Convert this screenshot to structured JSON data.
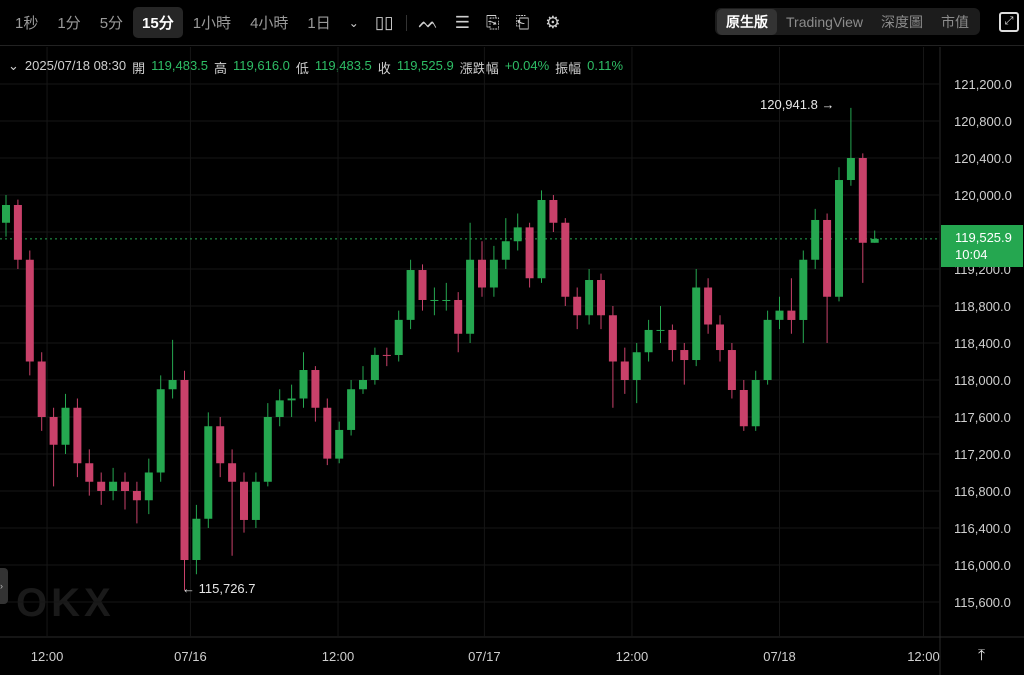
{
  "toolbar": {
    "timeframes": [
      "1秒",
      "1分",
      "5分",
      "15分",
      "1小時",
      "4小時",
      "1日"
    ],
    "active_timeframe": "15分",
    "icons": [
      "chevron-down-icon",
      "candle-type-icon",
      "indicators-icon",
      "list-icon",
      "draw-icon",
      "replay-icon",
      "settings-icon"
    ],
    "views": [
      "原生版",
      "TradingView",
      "深度圖",
      "市值"
    ],
    "active_view": "原生版"
  },
  "info": {
    "datetime": "2025/07/18 08:30",
    "open_label": "開",
    "open": "119,483.5",
    "high_label": "高",
    "high": "119,616.0",
    "low_label": "低",
    "low": "119,483.5",
    "close_label": "收",
    "close": "119,525.9",
    "change_label": "漲跌幅",
    "change": "+0.04%",
    "amplitude_label": "振幅",
    "amplitude": "0.11%"
  },
  "current_price": {
    "value": "119,525.9",
    "countdown": "10:04"
  },
  "annotations": {
    "high": "120,941.8",
    "low": "115,726.7"
  },
  "colors": {
    "up": "#25a750",
    "down": "#c9416a",
    "background": "#000000"
  },
  "chart_data": {
    "type": "candlestick",
    "ylim": [
      115400,
      121400
    ],
    "y_ticks": [
      "115,600.0",
      "116,000.0",
      "116,400.0",
      "116,800.0",
      "117,200.0",
      "117,600.0",
      "118,000.0",
      "118,400.0",
      "118,800.0",
      "119,200.0",
      "119,600.0",
      "120,000.0",
      "120,400.0",
      "120,800.0",
      "121,200.0"
    ],
    "y_tick_values": [
      115600,
      116000,
      116400,
      116800,
      117200,
      117600,
      118000,
      118400,
      118800,
      119200,
      119600,
      120000,
      120400,
      120800,
      121200
    ],
    "x_ticks": [
      {
        "label": "12:00",
        "at": 3.45
      },
      {
        "label": "07/16",
        "at": 15.5
      },
      {
        "label": "12:00",
        "at": 27.9
      },
      {
        "label": "07/17",
        "at": 40.2
      },
      {
        "label": "12:00",
        "at": 52.6
      },
      {
        "label": "07/18",
        "at": 65
      },
      {
        "label": "12:00",
        "at": 77.1
      }
    ],
    "grid": true,
    "candles_ohlc": [
      [
        119700,
        120000,
        119550,
        119892
      ],
      [
        119892,
        119950,
        119200,
        119300
      ],
      [
        119300,
        119400,
        118050,
        118200
      ],
      [
        118200,
        118300,
        117450,
        117600
      ],
      [
        117600,
        117700,
        116850,
        117300
      ],
      [
        117300,
        117850,
        117200,
        117700
      ],
      [
        117700,
        117800,
        116950,
        117100
      ],
      [
        117100,
        117250,
        116750,
        116900
      ],
      [
        116900,
        117000,
        116650,
        116800
      ],
      [
        116800,
        117050,
        116700,
        116900
      ],
      [
        116900,
        117000,
        116600,
        116800
      ],
      [
        116800,
        116900,
        116450,
        116700
      ],
      [
        116700,
        117150,
        116550,
        117000
      ],
      [
        117000,
        118050,
        116900,
        117900
      ],
      [
        117900,
        118434,
        117800,
        118000
      ],
      [
        118000,
        118100,
        115726.7,
        116054
      ],
      [
        116054,
        116650,
        115900,
        116500
      ],
      [
        116500,
        117650,
        116400,
        117500
      ],
      [
        117500,
        117600,
        116950,
        117100
      ],
      [
        117100,
        117250,
        116100,
        116900
      ],
      [
        116900,
        117000,
        116350,
        116487
      ],
      [
        116487,
        117000,
        116400,
        116900
      ],
      [
        116900,
        117750,
        116850,
        117600
      ],
      [
        117600,
        117900,
        117500,
        117780
      ],
      [
        117780,
        117950,
        117600,
        117800
      ],
      [
        117800,
        118300,
        117700,
        118108
      ],
      [
        118108,
        118150,
        117550,
        117700
      ],
      [
        117700,
        117800,
        117080,
        117150
      ],
      [
        117150,
        117550,
        117100,
        117460
      ],
      [
        117460,
        118000,
        117400,
        117900
      ],
      [
        117900,
        118150,
        117850,
        118000
      ],
      [
        118000,
        118350,
        117950,
        118271
      ],
      [
        118271,
        118350,
        118150,
        118270
      ],
      [
        118270,
        118750,
        118200,
        118650
      ],
      [
        118650,
        119300,
        118550,
        119189
      ],
      [
        119189,
        119250,
        118750,
        118865
      ],
      [
        118865,
        119000,
        118700,
        118865
      ],
      [
        118865,
        119050,
        118750,
        118865
      ],
      [
        118865,
        118950,
        118300,
        118500
      ],
      [
        118500,
        119700,
        118400,
        119300
      ],
      [
        119300,
        119500,
        118900,
        119000
      ],
      [
        119000,
        119450,
        118900,
        119300
      ],
      [
        119300,
        119750,
        119200,
        119500
      ],
      [
        119500,
        119800,
        119400,
        119650
      ],
      [
        119650,
        119700,
        119000,
        119100
      ],
      [
        119100,
        120050,
        119050,
        119946
      ],
      [
        119946,
        120000,
        119600,
        119700
      ],
      [
        119700,
        119750,
        118800,
        118900
      ],
      [
        118900,
        119000,
        118550,
        118700
      ],
      [
        118700,
        119200,
        118600,
        119081
      ],
      [
        119081,
        119150,
        118550,
        118700
      ],
      [
        118700,
        118800,
        117700,
        118200
      ],
      [
        118200,
        118350,
        117850,
        118000
      ],
      [
        118000,
        118400,
        117750,
        118300
      ],
      [
        118300,
        118650,
        118200,
        118541
      ],
      [
        118541,
        118800,
        118400,
        118541
      ],
      [
        118541,
        118600,
        118200,
        118324
      ],
      [
        118324,
        118400,
        117950,
        118216
      ],
      [
        118216,
        119200,
        118150,
        119000
      ],
      [
        119000,
        119100,
        118500,
        118600
      ],
      [
        118600,
        118700,
        118200,
        118324
      ],
      [
        118324,
        118400,
        117800,
        117892
      ],
      [
        117892,
        118000,
        117450,
        117500
      ],
      [
        117500,
        118100,
        117450,
        118000
      ],
      [
        118000,
        118750,
        117950,
        118650
      ],
      [
        118650,
        118900,
        118550,
        118750
      ],
      [
        118750,
        119100,
        118500,
        118649
      ],
      [
        118649,
        119400,
        118400,
        119300
      ],
      [
        119300,
        119850,
        119200,
        119730
      ],
      [
        119730,
        119800,
        118400,
        118900
      ],
      [
        118900,
        120300,
        118850,
        120162
      ],
      [
        120162,
        120941.8,
        120100,
        120400
      ],
      [
        120400,
        120450,
        119050,
        119483.5
      ],
      [
        119483.5,
        119616,
        119483.5,
        119525.9
      ]
    ],
    "last_price": 119525.9
  }
}
